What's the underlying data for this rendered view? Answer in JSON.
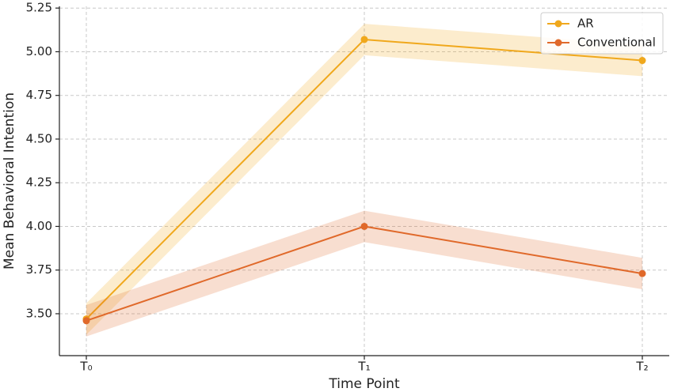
{
  "chart_data": {
    "type": "line",
    "x_label": "Time Point",
    "y_label": "Mean Behavioral Intention",
    "categories": [
      "T₀",
      "T₁",
      "T₂"
    ],
    "series": [
      {
        "name": "AR",
        "color": "#f0a81c",
        "values": [
          3.47,
          5.07,
          4.95
        ],
        "error": [
          0.09,
          0.09,
          0.09
        ]
      },
      {
        "name": "Conventional",
        "color": "#e0692a",
        "values": [
          3.46,
          4.0,
          3.73
        ],
        "error": [
          0.09,
          0.09,
          0.09
        ]
      }
    ],
    "ylim": [
      3.26,
      5.26
    ],
    "yticks": [
      {
        "value": 3.5,
        "label": "3.50"
      },
      3.75,
      {
        "value": 4,
        "label": "4.00"
      },
      4.25,
      {
        "value": 4.5,
        "label": "4.50"
      },
      4.75,
      {
        "value": 5,
        "label": "5.00"
      },
      5.25
    ],
    "grid": true,
    "legend": "upper right"
  }
}
